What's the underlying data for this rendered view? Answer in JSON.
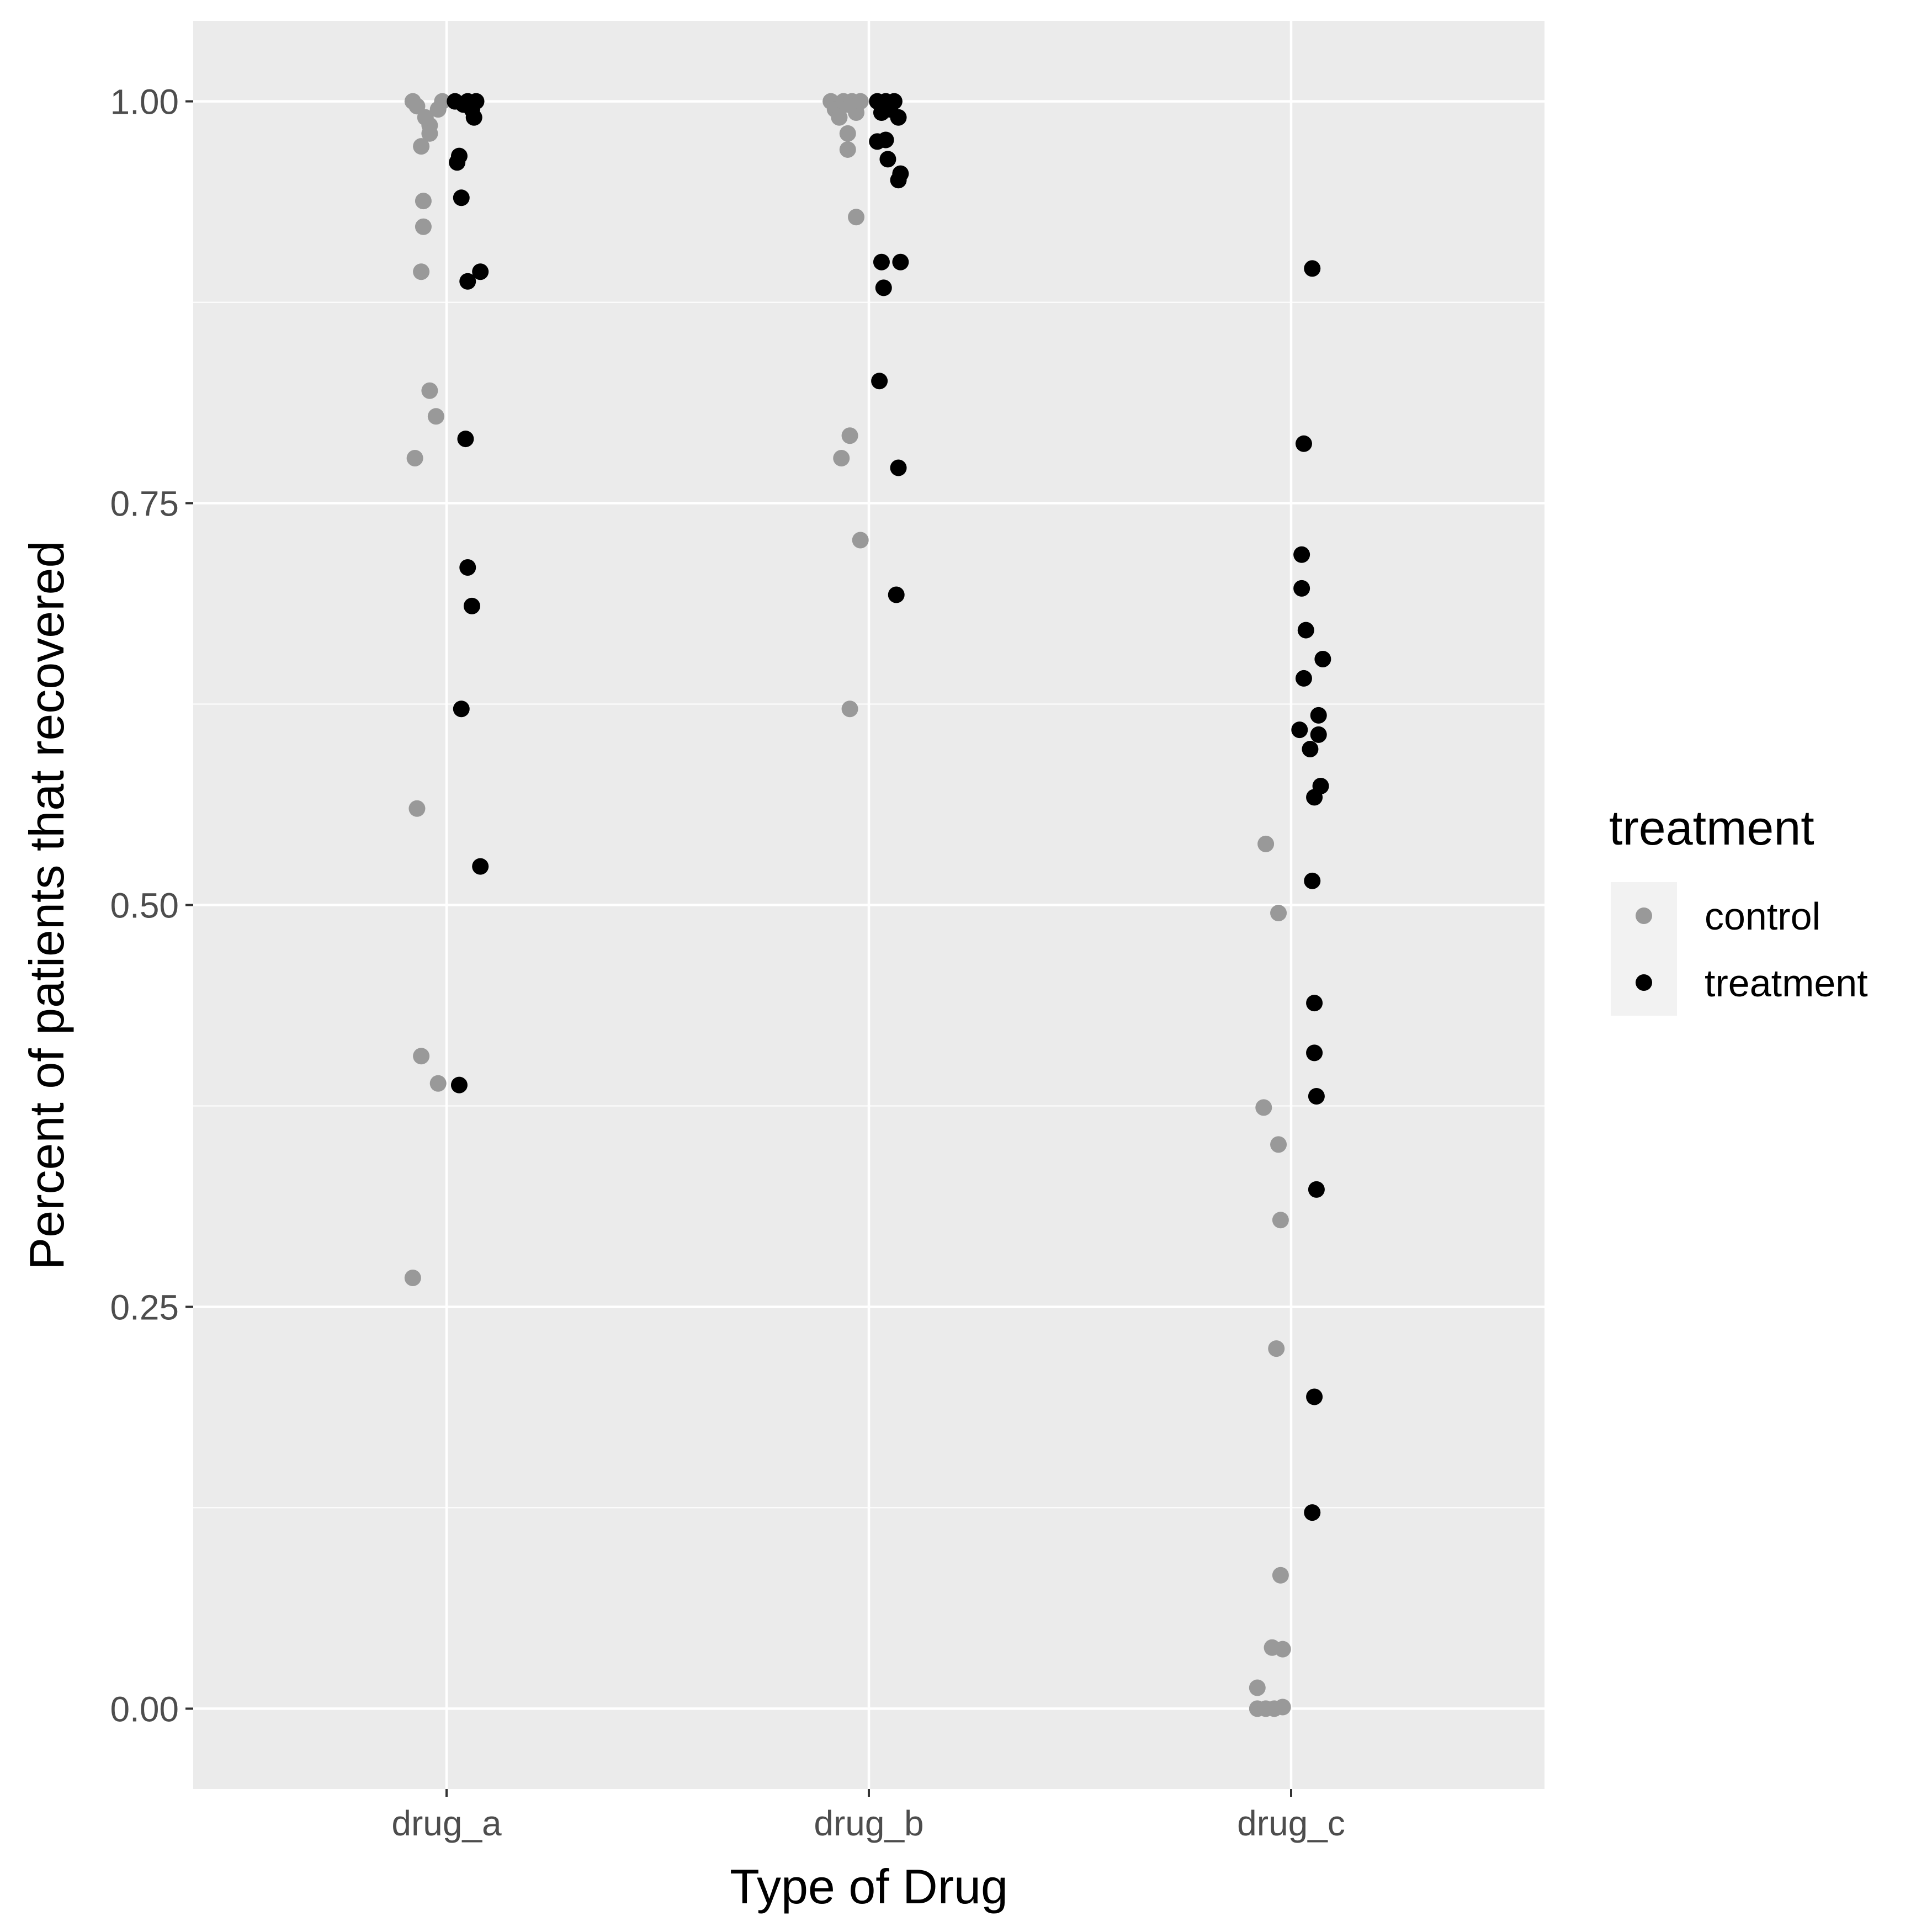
{
  "chart_data": {
    "type": "scatter",
    "xlabel": "Type of Drug",
    "ylabel": "Percent of patients that recovered",
    "categories": [
      "drug_a",
      "drug_b",
      "drug_c"
    ],
    "ylim": [
      -0.05,
      1.05
    ],
    "yticks": [
      0.0,
      0.25,
      0.5,
      0.75,
      1.0
    ],
    "ytick_labels": [
      "0.00",
      "0.25",
      "0.50",
      "0.75",
      "1.00"
    ],
    "grid": true,
    "legend": {
      "title": "treatment",
      "position": "right",
      "entries": [
        {
          "label": "control",
          "color": "#999999"
        },
        {
          "label": "treatment",
          "color": "#000000"
        }
      ]
    },
    "panel_background": "#ebebeb",
    "gridline_color": "#ffffff",
    "series": [
      {
        "name": "control",
        "color": "#999999",
        "points": [
          {
            "category": "drug_a",
            "jitter": -0.08,
            "y": 1.0
          },
          {
            "category": "drug_a",
            "jitter": -0.07,
            "y": 0.997
          },
          {
            "category": "drug_a",
            "jitter": -0.05,
            "y": 0.99
          },
          {
            "category": "drug_a",
            "jitter": -0.04,
            "y": 0.985
          },
          {
            "category": "drug_a",
            "jitter": -0.04,
            "y": 0.98
          },
          {
            "category": "drug_a",
            "jitter": -0.02,
            "y": 0.995
          },
          {
            "category": "drug_a",
            "jitter": -0.01,
            "y": 1.0
          },
          {
            "category": "drug_a",
            "jitter": -0.06,
            "y": 0.972
          },
          {
            "category": "drug_a",
            "jitter": -0.055,
            "y": 0.938
          },
          {
            "category": "drug_a",
            "jitter": -0.055,
            "y": 0.922
          },
          {
            "category": "drug_a",
            "jitter": -0.06,
            "y": 0.894
          },
          {
            "category": "drug_a",
            "jitter": -0.04,
            "y": 0.82
          },
          {
            "category": "drug_a",
            "jitter": -0.025,
            "y": 0.804
          },
          {
            "category": "drug_a",
            "jitter": -0.075,
            "y": 0.778
          },
          {
            "category": "drug_a",
            "jitter": -0.07,
            "y": 0.56
          },
          {
            "category": "drug_a",
            "jitter": -0.06,
            "y": 0.406
          },
          {
            "category": "drug_a",
            "jitter": -0.02,
            "y": 0.389
          },
          {
            "category": "drug_a",
            "jitter": -0.08,
            "y": 0.268
          },
          {
            "category": "drug_b",
            "jitter": -0.09,
            "y": 1.0
          },
          {
            "category": "drug_b",
            "jitter": -0.08,
            "y": 0.995
          },
          {
            "category": "drug_b",
            "jitter": -0.07,
            "y": 0.99
          },
          {
            "category": "drug_b",
            "jitter": -0.06,
            "y": 1.0
          },
          {
            "category": "drug_b",
            "jitter": -0.05,
            "y": 0.998
          },
          {
            "category": "drug_b",
            "jitter": -0.04,
            "y": 1.0
          },
          {
            "category": "drug_b",
            "jitter": -0.03,
            "y": 0.993
          },
          {
            "category": "drug_b",
            "jitter": -0.02,
            "y": 1.0
          },
          {
            "category": "drug_b",
            "jitter": -0.05,
            "y": 0.98
          },
          {
            "category": "drug_b",
            "jitter": -0.05,
            "y": 0.97
          },
          {
            "category": "drug_b",
            "jitter": -0.03,
            "y": 0.928
          },
          {
            "category": "drug_b",
            "jitter": -0.045,
            "y": 0.792
          },
          {
            "category": "drug_b",
            "jitter": -0.065,
            "y": 0.778
          },
          {
            "category": "drug_b",
            "jitter": -0.02,
            "y": 0.727
          },
          {
            "category": "drug_b",
            "jitter": -0.045,
            "y": 0.622
          },
          {
            "category": "drug_c",
            "jitter": -0.06,
            "y": 0.538
          },
          {
            "category": "drug_c",
            "jitter": -0.03,
            "y": 0.495
          },
          {
            "category": "drug_c",
            "jitter": -0.065,
            "y": 0.374
          },
          {
            "category": "drug_c",
            "jitter": -0.03,
            "y": 0.351
          },
          {
            "category": "drug_c",
            "jitter": -0.025,
            "y": 0.304
          },
          {
            "category": "drug_c",
            "jitter": -0.035,
            "y": 0.224
          },
          {
            "category": "drug_c",
            "jitter": -0.025,
            "y": 0.083
          },
          {
            "category": "drug_c",
            "jitter": -0.045,
            "y": 0.038
          },
          {
            "category": "drug_c",
            "jitter": -0.02,
            "y": 0.037
          },
          {
            "category": "drug_c",
            "jitter": -0.08,
            "y": 0.013
          },
          {
            "category": "drug_c",
            "jitter": -0.08,
            "y": 0.0
          },
          {
            "category": "drug_c",
            "jitter": -0.06,
            "y": 0.0
          },
          {
            "category": "drug_c",
            "jitter": -0.04,
            "y": 0.0
          },
          {
            "category": "drug_c",
            "jitter": -0.02,
            "y": 0.001
          }
        ]
      },
      {
        "name": "treatment",
        "color": "#000000",
        "points": [
          {
            "category": "drug_a",
            "jitter": 0.02,
            "y": 1.0
          },
          {
            "category": "drug_a",
            "jitter": 0.04,
            "y": 0.998
          },
          {
            "category": "drug_a",
            "jitter": 0.05,
            "y": 1.0
          },
          {
            "category": "drug_a",
            "jitter": 0.06,
            "y": 0.995
          },
          {
            "category": "drug_a",
            "jitter": 0.07,
            "y": 1.0
          },
          {
            "category": "drug_a",
            "jitter": 0.065,
            "y": 0.99
          },
          {
            "category": "drug_a",
            "jitter": 0.03,
            "y": 0.966
          },
          {
            "category": "drug_a",
            "jitter": 0.025,
            "y": 0.962
          },
          {
            "category": "drug_a",
            "jitter": 0.035,
            "y": 0.94
          },
          {
            "category": "drug_a",
            "jitter": 0.08,
            "y": 0.894
          },
          {
            "category": "drug_a",
            "jitter": 0.05,
            "y": 0.888
          },
          {
            "category": "drug_a",
            "jitter": 0.045,
            "y": 0.79
          },
          {
            "category": "drug_a",
            "jitter": 0.05,
            "y": 0.71
          },
          {
            "category": "drug_a",
            "jitter": 0.06,
            "y": 0.686
          },
          {
            "category": "drug_a",
            "jitter": 0.035,
            "y": 0.622
          },
          {
            "category": "drug_a",
            "jitter": 0.08,
            "y": 0.524
          },
          {
            "category": "drug_a",
            "jitter": 0.03,
            "y": 0.388
          },
          {
            "category": "drug_b",
            "jitter": 0.02,
            "y": 1.0
          },
          {
            "category": "drug_b",
            "jitter": 0.03,
            "y": 0.993
          },
          {
            "category": "drug_b",
            "jitter": 0.04,
            "y": 1.0
          },
          {
            "category": "drug_b",
            "jitter": 0.05,
            "y": 0.995
          },
          {
            "category": "drug_b",
            "jitter": 0.06,
            "y": 1.0
          },
          {
            "category": "drug_b",
            "jitter": 0.07,
            "y": 0.99
          },
          {
            "category": "drug_b",
            "jitter": 0.02,
            "y": 0.975
          },
          {
            "category": "drug_b",
            "jitter": 0.04,
            "y": 0.976
          },
          {
            "category": "drug_b",
            "jitter": 0.045,
            "y": 0.964
          },
          {
            "category": "drug_b",
            "jitter": 0.075,
            "y": 0.955
          },
          {
            "category": "drug_b",
            "jitter": 0.07,
            "y": 0.951
          },
          {
            "category": "drug_b",
            "jitter": 0.03,
            "y": 0.9
          },
          {
            "category": "drug_b",
            "jitter": 0.075,
            "y": 0.9
          },
          {
            "category": "drug_b",
            "jitter": 0.035,
            "y": 0.884
          },
          {
            "category": "drug_b",
            "jitter": 0.025,
            "y": 0.826
          },
          {
            "category": "drug_b",
            "jitter": 0.07,
            "y": 0.772
          },
          {
            "category": "drug_b",
            "jitter": 0.065,
            "y": 0.693
          },
          {
            "category": "drug_c",
            "jitter": 0.05,
            "y": 0.896
          },
          {
            "category": "drug_c",
            "jitter": 0.03,
            "y": 0.787
          },
          {
            "category": "drug_c",
            "jitter": 0.025,
            "y": 0.718
          },
          {
            "category": "drug_c",
            "jitter": 0.025,
            "y": 0.697
          },
          {
            "category": "drug_c",
            "jitter": 0.035,
            "y": 0.671
          },
          {
            "category": "drug_c",
            "jitter": 0.075,
            "y": 0.653
          },
          {
            "category": "drug_c",
            "jitter": 0.03,
            "y": 0.641
          },
          {
            "category": "drug_c",
            "jitter": 0.065,
            "y": 0.618
          },
          {
            "category": "drug_c",
            "jitter": 0.02,
            "y": 0.609
          },
          {
            "category": "drug_c",
            "jitter": 0.065,
            "y": 0.606
          },
          {
            "category": "drug_c",
            "jitter": 0.045,
            "y": 0.597
          },
          {
            "category": "drug_c",
            "jitter": 0.07,
            "y": 0.574
          },
          {
            "category": "drug_c",
            "jitter": 0.055,
            "y": 0.567
          },
          {
            "category": "drug_c",
            "jitter": 0.05,
            "y": 0.515
          },
          {
            "category": "drug_c",
            "jitter": 0.055,
            "y": 0.439
          },
          {
            "category": "drug_c",
            "jitter": 0.055,
            "y": 0.408
          },
          {
            "category": "drug_c",
            "jitter": 0.06,
            "y": 0.381
          },
          {
            "category": "drug_c",
            "jitter": 0.06,
            "y": 0.323
          },
          {
            "category": "drug_c",
            "jitter": 0.055,
            "y": 0.194
          },
          {
            "category": "drug_c",
            "jitter": 0.05,
            "y": 0.122
          }
        ]
      }
    ]
  }
}
